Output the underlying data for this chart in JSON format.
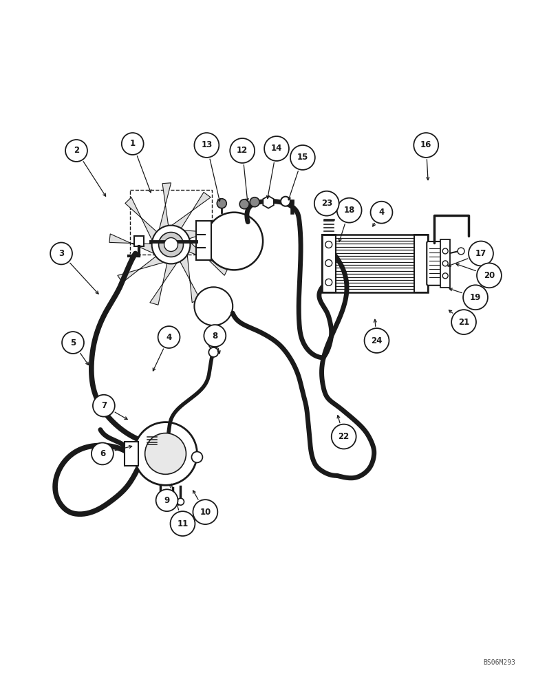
{
  "bg_color": "#ffffff",
  "line_color": "#1a1a1a",
  "watermark": "BS06M293",
  "fig_w": 8.12,
  "fig_h": 10.0,
  "dpi": 100
}
